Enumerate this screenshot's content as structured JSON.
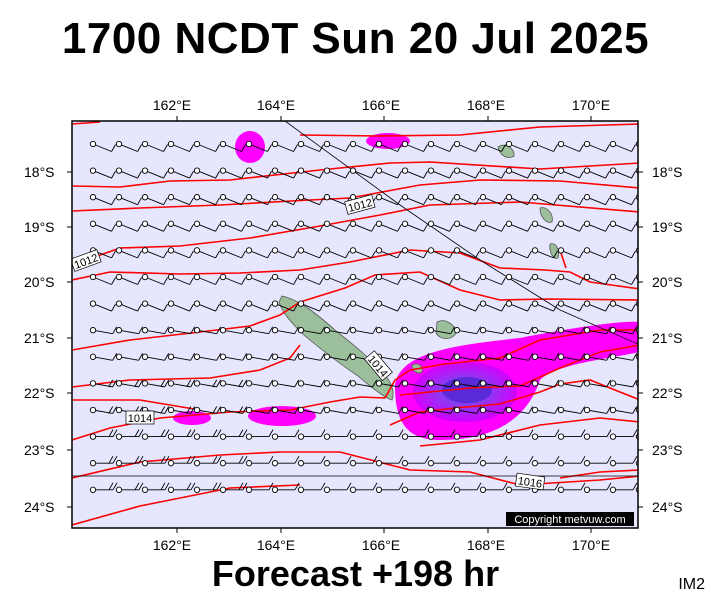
{
  "header": {
    "title": "1700 NCDT Sun 20 Jul 2025"
  },
  "footer": {
    "forecast": "Forecast +198 hr",
    "code": "IM2"
  },
  "map": {
    "lon_labels": [
      "162°E",
      "164°E",
      "166°E",
      "168°E",
      "170°E"
    ],
    "lat_labels": [
      "18°S",
      "19°S",
      "20°S",
      "21°S",
      "22°S",
      "23°S",
      "24°S"
    ],
    "isobar_labels": [
      "1012",
      "1012",
      "1014",
      "1014",
      "1016"
    ],
    "copyright": "Copyright metvuw.com",
    "colors": {
      "ocean": "#e6e6ff",
      "land": "#9bbf9b",
      "isobar": "#ff0000",
      "rain_light": "#ff00ff",
      "rain_heavy": "#8a2be2"
    }
  }
}
